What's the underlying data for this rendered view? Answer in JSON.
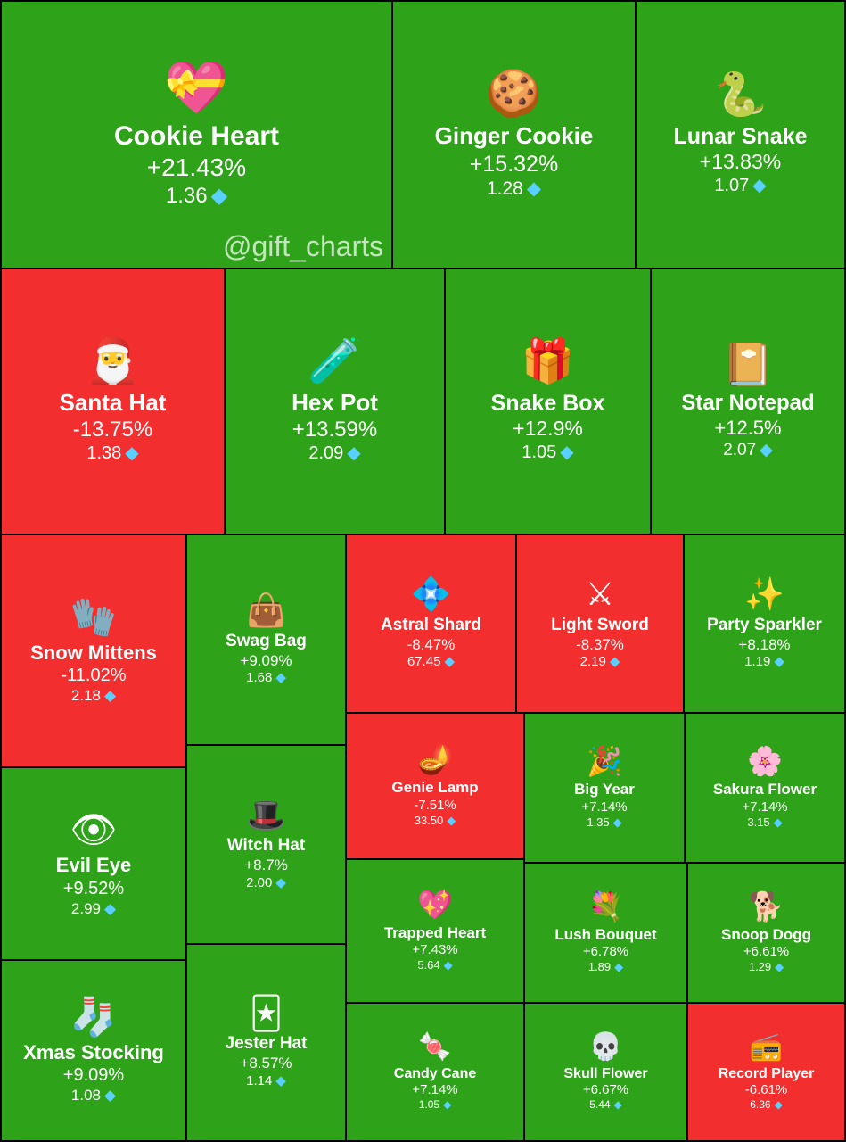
{
  "watermark": "@gift_charts",
  "colors": {
    "up": "#2ea31a",
    "down": "#f22e2e",
    "border": "#000000"
  },
  "price_icon": "diamond-icon",
  "chart_data": {
    "type": "treemap",
    "title": "",
    "tiles": [
      {
        "name": "Cookie Heart",
        "change": "+21.43%",
        "change_value": 21.43,
        "price": "1.36",
        "icon": "cookie-heart-icon",
        "glyph": "💝"
      },
      {
        "name": "Ginger Cookie",
        "change": "+15.32%",
        "change_value": 15.32,
        "price": "1.28",
        "icon": "gingerbread-icon",
        "glyph": "🍪"
      },
      {
        "name": "Lunar Snake",
        "change": "+13.83%",
        "change_value": 13.83,
        "price": "1.07",
        "icon": "snake-icon",
        "glyph": "🐍"
      },
      {
        "name": "Santa Hat",
        "change": "-13.75%",
        "change_value": -13.75,
        "price": "1.38",
        "icon": "santa-hat-icon",
        "glyph": "🎅"
      },
      {
        "name": "Hex Pot",
        "change": "+13.59%",
        "change_value": 13.59,
        "price": "2.09",
        "icon": "cauldron-icon",
        "glyph": "🧪"
      },
      {
        "name": "Snake Box",
        "change": "+12.9%",
        "change_value": 12.9,
        "price": "1.05",
        "icon": "gift-box-icon",
        "glyph": "🎁"
      },
      {
        "name": "Star Notepad",
        "change": "+12.5%",
        "change_value": 12.5,
        "price": "2.07",
        "icon": "notebook-icon",
        "glyph": "📔"
      },
      {
        "name": "Snow Mittens",
        "change": "-11.02%",
        "change_value": -11.02,
        "price": "2.18",
        "icon": "mittens-icon",
        "glyph": "🧤"
      },
      {
        "name": "Swag Bag",
        "change": "+9.09%",
        "change_value": 9.09,
        "price": "1.68",
        "icon": "bag-icon",
        "glyph": "👜"
      },
      {
        "name": "Astral Shard",
        "change": "-8.47%",
        "change_value": -8.47,
        "price": "67.45",
        "icon": "crystal-icon",
        "glyph": "💠"
      },
      {
        "name": "Light Sword",
        "change": "-8.37%",
        "change_value": -8.37,
        "price": "2.19",
        "icon": "light-sword-icon",
        "glyph": "⚔"
      },
      {
        "name": "Party Sparkler",
        "change": "+8.18%",
        "change_value": 8.18,
        "price": "1.19",
        "icon": "sparkler-icon",
        "glyph": "✨"
      },
      {
        "name": "Evil Eye",
        "change": "+9.52%",
        "change_value": 9.52,
        "price": "2.99",
        "icon": "eye-icon",
        "glyph": "👁"
      },
      {
        "name": "Witch Hat",
        "change": "+8.7%",
        "change_value": 8.7,
        "price": "2.00",
        "icon": "witch-hat-icon",
        "glyph": "🎩"
      },
      {
        "name": "Genie Lamp",
        "change": "-7.51%",
        "change_value": -7.51,
        "price": "33.50",
        "icon": "lamp-icon",
        "glyph": "🪔"
      },
      {
        "name": "Big Year",
        "change": "+7.14%",
        "change_value": 7.14,
        "price": "1.35",
        "icon": "big-year-icon",
        "glyph": "🎉"
      },
      {
        "name": "Sakura Flower",
        "change": "+7.14%",
        "change_value": 7.14,
        "price": "3.15",
        "icon": "sakura-icon",
        "glyph": "🌸"
      },
      {
        "name": "Trapped Heart",
        "change": "+7.43%",
        "change_value": 7.43,
        "price": "5.64",
        "icon": "trapped-heart-icon",
        "glyph": "💖"
      },
      {
        "name": "Lush Bouquet",
        "change": "+6.78%",
        "change_value": 6.78,
        "price": "1.89",
        "icon": "bouquet-icon",
        "glyph": "💐"
      },
      {
        "name": "Snoop Dogg",
        "change": "+6.61%",
        "change_value": 6.61,
        "price": "1.29",
        "icon": "dog-icon",
        "glyph": "🐕"
      },
      {
        "name": "Xmas Stocking",
        "change": "+9.09%",
        "change_value": 9.09,
        "price": "1.08",
        "icon": "stocking-icon",
        "glyph": "🧦"
      },
      {
        "name": "Jester Hat",
        "change": "+8.57%",
        "change_value": 8.57,
        "price": "1.14",
        "icon": "jester-hat-icon",
        "glyph": "🃏"
      },
      {
        "name": "Candy Cane",
        "change": "+7.14%",
        "change_value": 7.14,
        "price": "1.05",
        "icon": "candy-cane-icon",
        "glyph": "🍬"
      },
      {
        "name": "Skull Flower",
        "change": "+6.67%",
        "change_value": 6.67,
        "price": "5.44",
        "icon": "skull-flower-icon",
        "glyph": "💀"
      },
      {
        "name": "Record Player",
        "change": "-6.61%",
        "change_value": -6.61,
        "price": "6.36",
        "icon": "record-player-icon",
        "glyph": "📻"
      }
    ]
  }
}
